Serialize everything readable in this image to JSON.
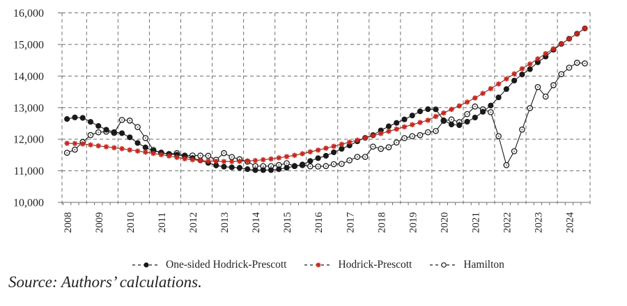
{
  "chart_data": {
    "type": "line",
    "title": "",
    "xlabel": "",
    "ylabel": "",
    "frequency": "quarterly",
    "x_start": "2008Q2",
    "x_end": "2024Q4",
    "year_ticks": [
      "2008",
      "2009",
      "2010",
      "2011",
      "2012",
      "2013",
      "2014",
      "2015",
      "2016",
      "2017",
      "2018",
      "2019",
      "2020",
      "2021",
      "2022",
      "2023",
      "2024"
    ],
    "y_ticks": [
      "10,000",
      "11,000",
      "12,000",
      "13,000",
      "14,000",
      "15,000",
      "16,000"
    ],
    "ylim": [
      10000,
      16000
    ],
    "grid": true,
    "legend_position": "bottom",
    "series": [
      {
        "name": "One-sided Hodrick-Prescott",
        "marker": "filled-circle",
        "color": "#1a1a1a",
        "values": [
          12640,
          12690,
          12675,
          12550,
          12420,
          12300,
          12225,
          12190,
          12060,
          11880,
          11740,
          11630,
          11580,
          11530,
          11510,
          11460,
          11400,
          11330,
          11250,
          11170,
          11130,
          11110,
          11095,
          11052,
          11022,
          11022,
          11022,
          11052,
          11096,
          11146,
          11200,
          11310,
          11400,
          11475,
          11585,
          11694,
          11803,
          11934,
          12044,
          12131,
          12277,
          12408,
          12517,
          12627,
          12750,
          12882,
          12950,
          12945,
          12600,
          12466,
          12444,
          12554,
          12686,
          12868,
          13066,
          13323,
          13587,
          13856,
          14050,
          14217,
          14435,
          14615,
          14833,
          15014,
          15181,
          15341,
          15507
        ]
      },
      {
        "name": "Hodrick-Prescott",
        "marker": "red-asterisk",
        "color": "#c8281e",
        "values": [
          11870,
          11865,
          11850,
          11820,
          11790,
          11760,
          11730,
          11700,
          11660,
          11625,
          11590,
          11550,
          11510,
          11470,
          11425,
          11380,
          11350,
          11325,
          11310,
          11300,
          11295,
          11295,
          11300,
          11310,
          11325,
          11350,
          11375,
          11410,
          11450,
          11490,
          11540,
          11600,
          11655,
          11715,
          11775,
          11840,
          11905,
          11970,
          12040,
          12110,
          12180,
          12250,
          12320,
          12390,
          12460,
          12530,
          12600,
          12720,
          12830,
          12945,
          13055,
          13175,
          13305,
          13450,
          13600,
          13750,
          13910,
          14070,
          14230,
          14380,
          14545,
          14710,
          14860,
          15015,
          15180,
          15340,
          15510
        ]
      },
      {
        "name": "Hamilton",
        "marker": "open-circle",
        "color": "#1a1a1a",
        "values": [
          11570,
          11670,
          11910,
          12130,
          12220,
          12240,
          12200,
          12610,
          12590,
          12385,
          12035,
          11660,
          11570,
          11530,
          11560,
          11480,
          11485,
          11480,
          11475,
          11350,
          11560,
          11435,
          11365,
          11290,
          11148,
          11146,
          11146,
          11183,
          11240,
          11150,
          11180,
          11140,
          11135,
          11150,
          11210,
          11220,
          11330,
          11440,
          11440,
          11765,
          11695,
          11745,
          11895,
          12035,
          12095,
          12130,
          12220,
          12260,
          12580,
          12625,
          12540,
          12795,
          13035,
          12945,
          12855,
          12095,
          11180,
          11620,
          12305,
          12985,
          13650,
          13350,
          13710,
          14060,
          14265,
          14420,
          14400
        ]
      }
    ]
  },
  "legend": {
    "items": [
      {
        "label": "One-sided Hodrick-Prescott"
      },
      {
        "label": "Hodrick-Prescott"
      },
      {
        "label": "Hamilton"
      }
    ]
  },
  "source": "Source: Authors’ calculations."
}
